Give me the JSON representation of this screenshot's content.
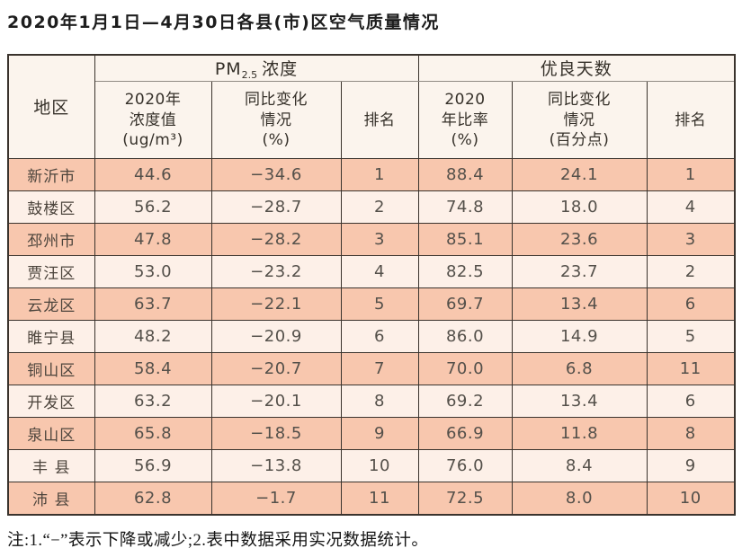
{
  "title": "2020年1月1日—4月30日各县(市)区空气质量情况",
  "footnote": "注:1.“−”表示下降或减少;2.表中数据采用实况数据统计。",
  "colors": {
    "row_salmon": "#f8c7ae",
    "row_light": "#fdf0e8",
    "header_bg": "#fbf4ed",
    "border": "#3a332d"
  },
  "table": {
    "corner_header": "地区",
    "group1": {
      "pm": "PM",
      "pm_sub": "2.5",
      "rest": "浓度"
    },
    "group2": "优良天数",
    "subheaders": {
      "pm_value": [
        "2020年",
        "浓度值",
        "(ug/m³)"
      ],
      "pm_change": [
        "同比变化",
        "情况",
        "(%)"
      ],
      "pm_rank": [
        "排名"
      ],
      "days_rate": [
        "2020",
        "年比率",
        "(%)"
      ],
      "days_change": [
        "同比变化",
        "情况",
        "(百分点)"
      ],
      "days_rank": [
        "排名"
      ]
    },
    "rows": [
      {
        "cells": [
          "新沂市",
          "44.6",
          "−34.6",
          "1",
          "88.4",
          "24.1",
          "1"
        ]
      },
      {
        "cells": [
          "鼓楼区",
          "56.2",
          "−28.7",
          "2",
          "74.8",
          "18.0",
          "4"
        ]
      },
      {
        "cells": [
          "邳州市",
          "47.8",
          "−28.2",
          "3",
          "85.1",
          "23.6",
          "3"
        ]
      },
      {
        "cells": [
          "贾汪区",
          "53.0",
          "−23.2",
          "4",
          "82.5",
          "23.7",
          "2"
        ]
      },
      {
        "cells": [
          "云龙区",
          "63.7",
          "−22.1",
          "5",
          "69.7",
          "13.4",
          "6"
        ]
      },
      {
        "cells": [
          "睢宁县",
          "48.2",
          "−20.9",
          "6",
          "86.0",
          "14.9",
          "5"
        ]
      },
      {
        "cells": [
          "铜山区",
          "58.4",
          "−20.7",
          "7",
          "70.0",
          "6.8",
          "11"
        ]
      },
      {
        "cells": [
          "开发区",
          "63.2",
          "−20.1",
          "8",
          "69.2",
          "13.4",
          "6"
        ]
      },
      {
        "cells": [
          "泉山区",
          "65.8",
          "−18.5",
          "9",
          "66.9",
          "11.8",
          "8"
        ]
      },
      {
        "cells": [
          "丰 县",
          "56.9",
          "−13.8",
          "10",
          "76.0",
          "8.4",
          "9"
        ]
      },
      {
        "cells": [
          "沛 县",
          "62.8",
          "−1.7",
          "11",
          "72.5",
          "8.0",
          "10"
        ]
      }
    ]
  }
}
